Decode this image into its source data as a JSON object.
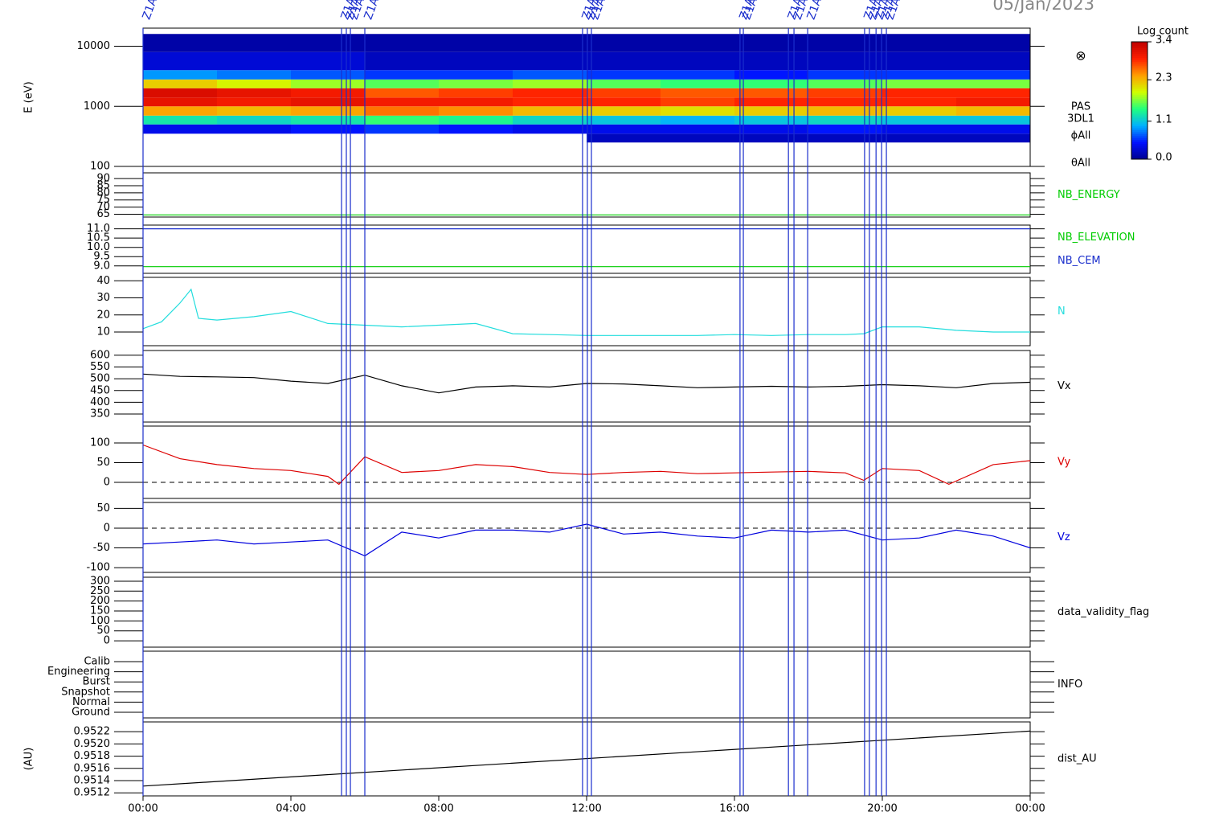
{
  "chart_data": [
    {
      "type": "heatmap",
      "title": "05/Jan/2023",
      "ylabel": "E (eV)",
      "log_y": true,
      "xlim": [
        0,
        24
      ],
      "ylim": [
        100,
        20000
      ],
      "yticks": [
        100,
        1000,
        10000
      ],
      "xbins": [
        0,
        2,
        4,
        6,
        8,
        10,
        12,
        14,
        16,
        18,
        20,
        22,
        24
      ],
      "ybins": [
        250,
        350,
        500,
        700,
        1000,
        1400,
        2000,
        2800,
        4000,
        8000,
        16000
      ],
      "z": [
        [
          null,
          0.4,
          1.3,
          2.4,
          3.1,
          3.2,
          2.2,
          0.9,
          0.3,
          0.1
        ],
        [
          null,
          0.4,
          1.2,
          2.3,
          3.0,
          3.1,
          2.0,
          0.8,
          0.3,
          0.1
        ],
        [
          null,
          0.5,
          1.3,
          2.4,
          3.1,
          3.0,
          1.8,
          0.7,
          0.3,
          0.1
        ],
        [
          null,
          0.6,
          1.5,
          2.6,
          3.0,
          2.7,
          1.6,
          0.6,
          0.2,
          0.1
        ],
        [
          null,
          0.5,
          1.4,
          2.5,
          3.0,
          2.8,
          1.7,
          0.6,
          0.2,
          0.1
        ],
        [
          null,
          0.4,
          1.2,
          2.3,
          2.9,
          2.9,
          1.8,
          0.7,
          0.2,
          0.1
        ],
        [
          0.2,
          0.4,
          1.1,
          2.2,
          2.9,
          2.8,
          1.6,
          0.6,
          0.2,
          0.1
        ],
        [
          0.2,
          0.4,
          1.0,
          2.1,
          2.8,
          2.7,
          1.5,
          0.6,
          0.2,
          0.1
        ],
        [
          0.2,
          0.4,
          1.1,
          2.2,
          2.9,
          2.7,
          1.5,
          0.5,
          0.2,
          0.1
        ],
        [
          0.2,
          0.5,
          1.2,
          2.3,
          2.9,
          2.8,
          1.6,
          0.6,
          0.2,
          0.1
        ],
        [
          0.2,
          0.4,
          1.1,
          2.2,
          2.9,
          2.9,
          1.7,
          0.6,
          0.2,
          0.1
        ],
        [
          0.2,
          0.4,
          1.1,
          2.3,
          3.0,
          2.9,
          1.7,
          0.6,
          0.2,
          0.1
        ]
      ],
      "zlim": [
        0,
        3.4
      ],
      "zticks": [
        {
          "value": 0,
          "label": "0.0"
        },
        1.1,
        2.3,
        3.4
      ],
      "colorbar_label": "Log count",
      "colors": [
        "#000090",
        "#0010ff",
        "#00b0ff",
        "#20ff80",
        "#d0ff00",
        "#ffa000",
        "#ff2000",
        "#c00000"
      ],
      "labels": [
        "PAS",
        "3DL1",
        "ϕAll",
        "θAll"
      ],
      "symbol": "⊗",
      "markers": {
        "label": "Z1AS",
        "color": "#1a2ecc",
        "x": [
          0,
          5.37,
          5.5,
          5.61,
          6.0,
          11.89,
          12.02,
          12.13,
          16.15,
          16.24,
          17.46,
          17.61,
          17.98,
          19.52,
          19.65,
          19.83,
          19.98,
          20.11
        ]
      }
    },
    {
      "type": "line",
      "xlim": [
        0,
        24
      ],
      "ylim": [
        63,
        94
      ],
      "yticks": [
        65,
        70,
        75,
        80,
        85,
        90
      ],
      "x": [
        0,
        24
      ],
      "series": [
        {
          "name": "NB_ENERGY",
          "color": "#00cc00",
          "values": [
            64.5,
            64.5
          ]
        }
      ]
    },
    {
      "type": "line",
      "xlim": [
        0,
        24
      ],
      "ylim": [
        8.6,
        11.2
      ],
      "yticks": [
        {
          "value": 9,
          "label": "9.0"
        },
        9.5,
        {
          "value": 10,
          "label": "10.0"
        },
        10.5,
        {
          "value": 11,
          "label": "11.0"
        }
      ],
      "x": [
        0,
        24
      ],
      "series": [
        {
          "name": "NB_ELEVATION",
          "color": "#00cc00",
          "values": [
            8.96,
            8.96
          ]
        },
        {
          "name": "NB_CEM",
          "color": "#1a2ecc",
          "values": [
            11.0,
            11.0
          ]
        }
      ]
    },
    {
      "type": "line",
      "xlim": [
        0,
        24
      ],
      "ylim": [
        2,
        42
      ],
      "yticks": [
        10,
        20,
        30,
        40
      ],
      "x": [
        0,
        0.5,
        1,
        1.3,
        1.5,
        2,
        3,
        4,
        5,
        6,
        7,
        8,
        9,
        10,
        11,
        12,
        13,
        14,
        15,
        16,
        17,
        18,
        19,
        19.5,
        20,
        21,
        22,
        23,
        24
      ],
      "series": [
        {
          "name": "N",
          "color": "#22dddd",
          "values": [
            12,
            16,
            27,
            35,
            18,
            17,
            19,
            22,
            15,
            14,
            13,
            14,
            15,
            9,
            8.5,
            8,
            8,
            8,
            8,
            8.5,
            8,
            8.5,
            8.5,
            9,
            13,
            13,
            11,
            10,
            10
          ]
        }
      ]
    },
    {
      "type": "line",
      "xlim": [
        0,
        24
      ],
      "ylim": [
        316,
        620
      ],
      "yticks": [
        350,
        400,
        450,
        500,
        550,
        600
      ],
      "x": [
        0,
        1,
        2,
        3,
        4,
        5,
        6,
        7,
        8,
        9,
        10,
        11,
        12,
        13,
        14,
        15,
        16,
        17,
        18,
        19,
        20,
        21,
        22,
        23,
        24
      ],
      "series": [
        {
          "name": "Vx",
          "color": "#000000",
          "values": [
            520,
            510,
            508,
            505,
            490,
            480,
            515,
            470,
            440,
            465,
            470,
            465,
            480,
            478,
            470,
            462,
            465,
            468,
            465,
            468,
            475,
            470,
            462,
            480,
            485
          ]
        }
      ]
    },
    {
      "type": "line",
      "xlim": [
        0,
        24
      ],
      "ylim": [
        -41,
        143
      ],
      "yticks": [
        0,
        50,
        100
      ],
      "zero_line": true,
      "x": [
        0,
        1,
        2,
        3,
        4,
        5,
        5.3,
        6,
        7,
        8,
        9,
        10,
        11,
        12,
        13,
        14,
        15,
        16,
        17,
        18,
        19,
        19.5,
        20,
        21,
        21.8,
        23,
        24
      ],
      "series": [
        {
          "name": "Vy",
          "color": "#dd0000",
          "values": [
            95,
            60,
            45,
            35,
            30,
            15,
            -5,
            65,
            25,
            30,
            45,
            40,
            25,
            20,
            25,
            28,
            22,
            24,
            26,
            28,
            24,
            5,
            35,
            30,
            -5,
            45,
            55
          ]
        }
      ]
    },
    {
      "type": "line",
      "xlim": [
        0,
        24
      ],
      "ylim": [
        -112,
        65
      ],
      "yticks": [
        -100,
        -50,
        0,
        50
      ],
      "zero_line": true,
      "x": [
        0,
        1,
        2,
        3,
        4,
        5,
        6,
        7,
        8,
        9,
        10,
        11,
        12,
        13,
        14,
        15,
        16,
        17,
        18,
        19,
        20,
        21,
        22,
        23,
        24
      ],
      "series": [
        {
          "name": "Vz",
          "color": "#0000dd",
          "values": [
            -40,
            -35,
            -30,
            -40,
            -35,
            -30,
            -70,
            -10,
            -25,
            -5,
            -5,
            -10,
            10,
            -15,
            -10,
            -20,
            -25,
            -5,
            -10,
            -5,
            -30,
            -25,
            -5,
            -20,
            -50
          ]
        }
      ]
    },
    {
      "type": "line",
      "xlim": [
        0,
        24
      ],
      "ylim": [
        -32,
        320
      ],
      "yticks": [
        0,
        50,
        100,
        150,
        200,
        250,
        300
      ],
      "label": "data_validity_flag"
    },
    {
      "type": "categories",
      "ycategories": [
        "Ground",
        "Normal",
        "Snapshot",
        "Burst",
        "Engineering",
        "Calib"
      ],
      "label": "INFO"
    },
    {
      "type": "line",
      "ylabel": "(AU)",
      "xlim": [
        0,
        24
      ],
      "ylim": [
        0.95115,
        0.95236
      ],
      "yticks": [
        0.9512,
        0.9514,
        0.9516,
        0.9518,
        {
          "value": 0.952,
          "label": "0.9520"
        },
        0.9522
      ],
      "xticks": [
        {
          "value": 0,
          "label": "00:00"
        },
        {
          "value": 4,
          "label": "04:00"
        },
        {
          "value": 8,
          "label": "08:00"
        },
        {
          "value": 12,
          "label": "12:00"
        },
        {
          "value": 16,
          "label": "16:00"
        },
        {
          "value": 20,
          "label": "20:00"
        },
        {
          "value": 24,
          "label": "00:00"
        }
      ],
      "x": [
        0,
        24
      ],
      "series": [
        {
          "name": "dist_AU",
          "color": "#000000",
          "values": [
            0.95131,
            0.95221
          ]
        }
      ]
    }
  ]
}
